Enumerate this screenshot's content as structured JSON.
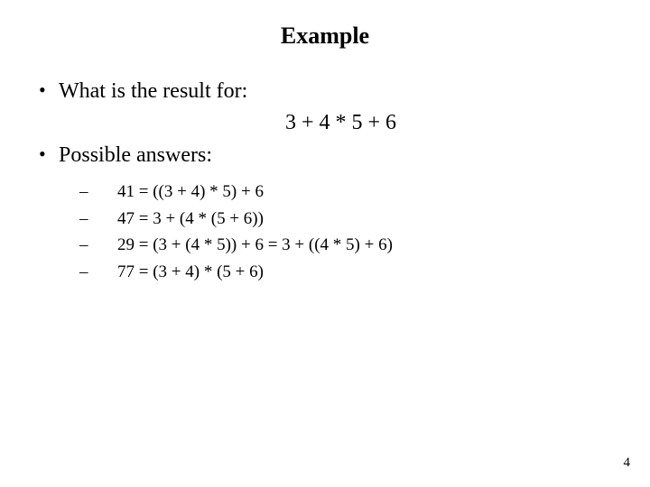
{
  "slide": {
    "title": "Example",
    "bullet1": "What is the result for:",
    "expression": "3 + 4 * 5 + 6",
    "bullet2": "Possible answers:",
    "answers": [
      " 41 = ((3 + 4) * 5) + 6",
      "47 = 3 + (4 * (5 + 6))",
      "29 = (3 + (4 * 5)) + 6 = 3 + ((4 * 5) + 6)",
      "77 = (3 + 4) * (5 + 6)"
    ],
    "page_number": "4"
  },
  "style": {
    "background_color": "#ffffff",
    "text_color": "#000000",
    "font_family": "Times New Roman",
    "title_fontsize": 26,
    "bullet_fontsize": 24,
    "sub_fontsize": 19,
    "pagenum_fontsize": 15
  }
}
